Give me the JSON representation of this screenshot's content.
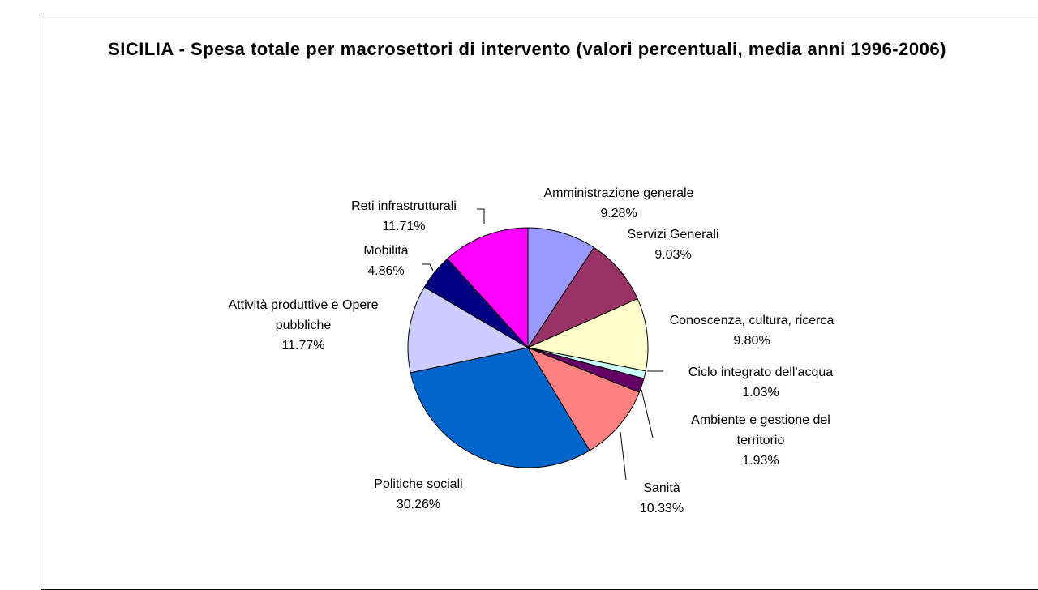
{
  "chart_data": {
    "type": "pie",
    "title": "SICILIA - Spesa totale per macrosettori di intervento (valori percentuali, media anni 1996-2006)",
    "categories": [
      "Amministrazione generale",
      "Servizi Generali",
      "Conoscenza, cultura, ricerca",
      "Ciclo integrato dell'acqua",
      "Ambiente e gestione del territorio",
      "Sanità",
      "Politiche sociali",
      "Attività produttive e Opere pubbliche",
      "Mobilità",
      "Reti infrastrutturali"
    ],
    "values": [
      9.28,
      9.03,
      9.8,
      1.03,
      1.93,
      10.33,
      30.26,
      11.77,
      4.86,
      11.71
    ],
    "value_labels": [
      "9.28%",
      "9.03%",
      "9.80%",
      "1.03%",
      "1.93%",
      "10.33%",
      "30.26%",
      "11.77%",
      "4.86%",
      "11.71%"
    ],
    "colors": [
      "#9999ff",
      "#993366",
      "#ffffcc",
      "#ccffff",
      "#660066",
      "#ff8080",
      "#0066cc",
      "#ccccff",
      "#000080",
      "#ff00ff"
    ]
  }
}
